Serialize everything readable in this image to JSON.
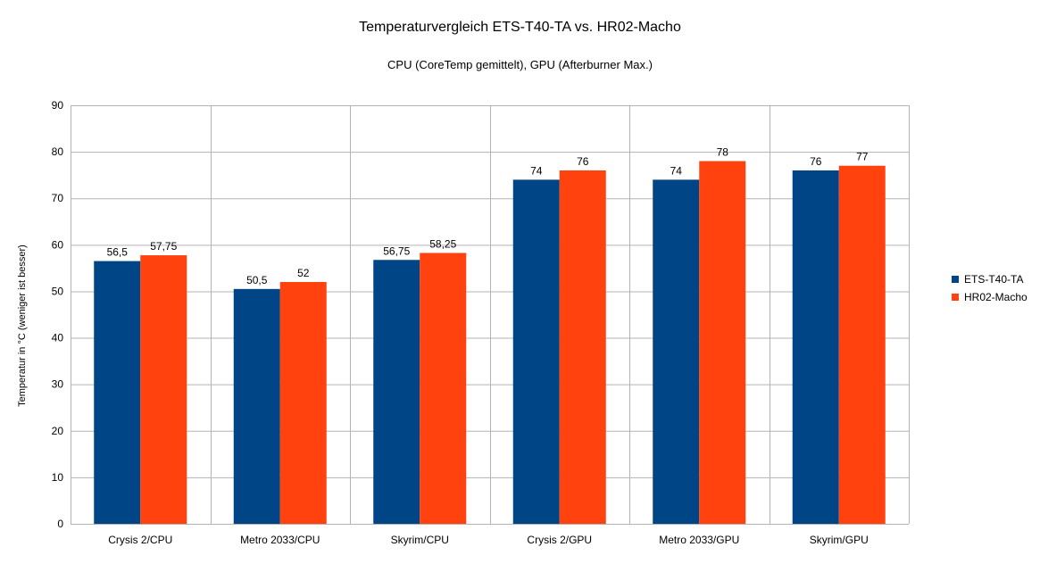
{
  "chart_data": {
    "type": "bar",
    "title": "Temperaturvergleich ETS-T40-TA vs. HR02-Macho",
    "subtitle": "CPU (CoreTemp gemittelt), GPU (Afterburner Max.)",
    "xlabel": "",
    "ylabel": "Temperatur in °C (weniger ist besser)",
    "ylim": [
      0,
      90
    ],
    "yticks": [
      0,
      10,
      20,
      30,
      40,
      50,
      60,
      70,
      80,
      90
    ],
    "categories": [
      "Crysis 2/CPU",
      "Metro 2033/CPU",
      "Skyrim/CPU",
      "Crysis 2/GPU",
      "Metro 2033/GPU",
      "Skyrim/GPU"
    ],
    "series": [
      {
        "name": "ETS-T40-TA",
        "color": "#004586",
        "values": [
          56.5,
          50.5,
          56.75,
          74,
          74,
          76
        ],
        "labels": [
          "56,5",
          "50,5",
          "56,75",
          "74",
          "74",
          "76"
        ]
      },
      {
        "name": "HR02-Macho",
        "color": "#ff420e",
        "values": [
          57.75,
          52,
          58.25,
          76,
          78,
          77
        ],
        "labels": [
          "57,75",
          "52",
          "58,25",
          "76",
          "78",
          "77"
        ]
      }
    ],
    "grid": true,
    "legend": "right"
  }
}
